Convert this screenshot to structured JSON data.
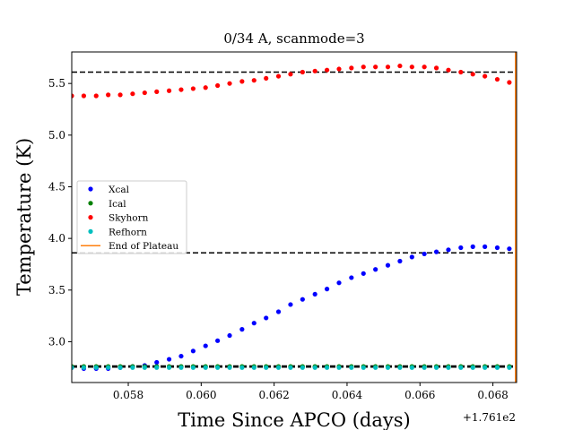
{
  "chart_data": {
    "type": "scatter",
    "title": "0/34 A, scanmode=3",
    "xlabel": "Time Since APCO (days)",
    "ylabel": "Temperature (K)",
    "x_offset_label": "+1.761e2",
    "xlim": [
      0.05645,
      0.06865
    ],
    "ylim": [
      2.605,
      5.805
    ],
    "x_ticks": [
      0.058,
      0.06,
      0.062,
      0.064,
      0.066,
      0.068
    ],
    "x_tick_labels": [
      "0.058",
      "0.060",
      "0.062",
      "0.064",
      "0.066",
      "0.068"
    ],
    "y_ticks": [
      3.0,
      3.5,
      4.0,
      4.5,
      5.0,
      5.5
    ],
    "y_tick_labels": [
      "3.0",
      "3.5",
      "4.0",
      "4.5",
      "5.0",
      "5.5"
    ],
    "grid": false,
    "legend_position": "center-left",
    "x": [
      0.05645,
      0.05678,
      0.05712,
      0.05745,
      0.05778,
      0.05812,
      0.05845,
      0.05878,
      0.05912,
      0.05945,
      0.05978,
      0.06012,
      0.06045,
      0.06078,
      0.06112,
      0.06145,
      0.06178,
      0.06212,
      0.06245,
      0.06278,
      0.06312,
      0.06345,
      0.06378,
      0.06412,
      0.06445,
      0.06478,
      0.06512,
      0.06545,
      0.06578,
      0.06612,
      0.06645,
      0.06678,
      0.06712,
      0.06745,
      0.06778,
      0.06812,
      0.06845
    ],
    "series": [
      {
        "name": "Xcal",
        "color": "#0000ff",
        "values": [
          2.75,
          2.74,
          2.74,
          2.74,
          2.75,
          2.76,
          2.77,
          2.8,
          2.83,
          2.86,
          2.91,
          2.96,
          3.01,
          3.06,
          3.12,
          3.18,
          3.23,
          3.29,
          3.36,
          3.41,
          3.46,
          3.51,
          3.57,
          3.62,
          3.66,
          3.7,
          3.74,
          3.78,
          3.82,
          3.85,
          3.87,
          3.89,
          3.91,
          3.92,
          3.92,
          3.91,
          3.9
        ]
      },
      {
        "name": "Ical",
        "color": "#008000",
        "values": [
          2.76,
          2.76,
          2.76,
          2.76,
          2.76,
          2.76,
          2.76,
          2.76,
          2.76,
          2.76,
          2.76,
          2.76,
          2.76,
          2.76,
          2.76,
          2.76,
          2.76,
          2.76,
          2.76,
          2.76,
          2.76,
          2.76,
          2.76,
          2.76,
          2.76,
          2.76,
          2.76,
          2.76,
          2.76,
          2.76,
          2.76,
          2.76,
          2.76,
          2.76,
          2.76,
          2.76,
          2.76
        ]
      },
      {
        "name": "Skyhorn",
        "color": "#ff0000",
        "values": [
          5.38,
          5.38,
          5.38,
          5.39,
          5.39,
          5.4,
          5.41,
          5.42,
          5.43,
          5.44,
          5.45,
          5.46,
          5.48,
          5.5,
          5.52,
          5.53,
          5.55,
          5.57,
          5.59,
          5.61,
          5.62,
          5.63,
          5.64,
          5.65,
          5.66,
          5.66,
          5.66,
          5.67,
          5.66,
          5.66,
          5.65,
          5.63,
          5.61,
          5.59,
          5.57,
          5.54,
          5.51
        ]
      },
      {
        "name": "Refhorn",
        "color": "#00bfbf",
        "values": [
          2.75,
          2.75,
          2.75,
          2.75,
          2.75,
          2.75,
          2.75,
          2.75,
          2.75,
          2.75,
          2.75,
          2.75,
          2.75,
          2.75,
          2.75,
          2.75,
          2.75,
          2.75,
          2.75,
          2.75,
          2.75,
          2.75,
          2.75,
          2.75,
          2.75,
          2.75,
          2.75,
          2.75,
          2.75,
          2.75,
          2.75,
          2.75,
          2.75,
          2.75,
          2.75,
          2.75,
          2.75
        ]
      }
    ],
    "hlines": [
      {
        "y": 5.61,
        "style": "dashed",
        "color": "#000000"
      },
      {
        "y": 3.86,
        "style": "dashed",
        "color": "#000000"
      },
      {
        "y": 2.765,
        "style": "dashed",
        "color": "#000000"
      },
      {
        "y": 2.755,
        "style": "dashed",
        "color": "#000000"
      }
    ],
    "vlines": [
      {
        "name": "End of Plateau",
        "x": 0.06862,
        "color": "#ff7f0e"
      }
    ],
    "legend": [
      "Xcal",
      "Ical",
      "Skyhorn",
      "Refhorn",
      "End of Plateau"
    ]
  }
}
